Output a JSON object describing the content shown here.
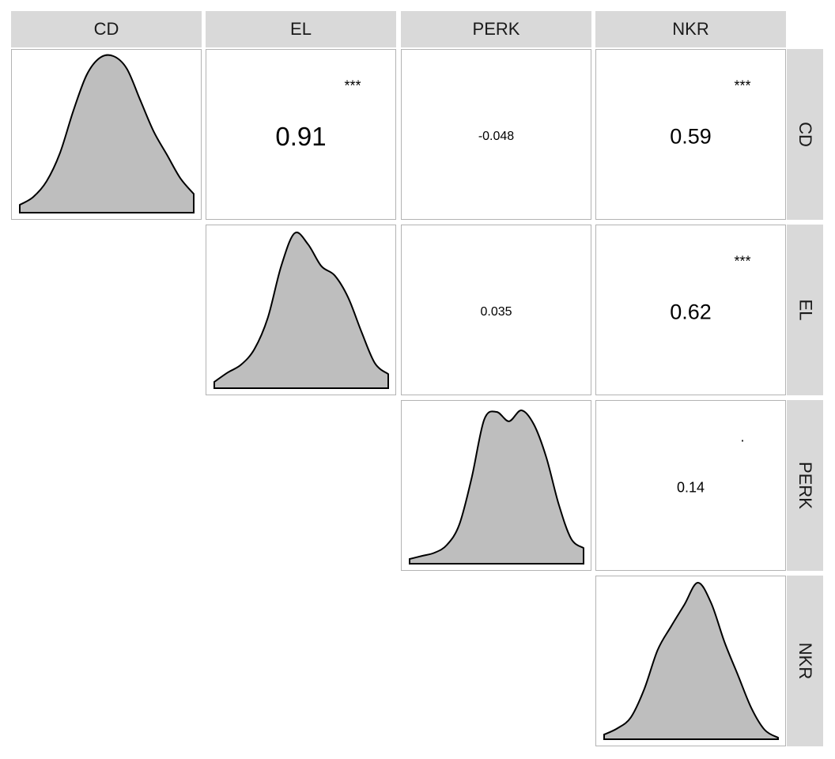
{
  "chart_data": {
    "type": "pairs-correlation-matrix",
    "variables": [
      "CD",
      "EL",
      "PERK",
      "NKR"
    ],
    "diagonal": "density",
    "correlations": [
      {
        "row": "CD",
        "col": "EL",
        "value": "0.91",
        "stars": "***"
      },
      {
        "row": "CD",
        "col": "PERK",
        "value": "-0.048",
        "stars": ""
      },
      {
        "row": "CD",
        "col": "NKR",
        "value": "0.59",
        "stars": "***"
      },
      {
        "row": "EL",
        "col": "PERK",
        "value": "0.035",
        "stars": ""
      },
      {
        "row": "EL",
        "col": "NKR",
        "value": "0.62",
        "stars": "***"
      },
      {
        "row": "PERK",
        "col": "NKR",
        "value": "0.14",
        "stars": "."
      }
    ],
    "densities": {
      "CD": [
        0.05,
        0.1,
        0.2,
        0.38,
        0.65,
        0.88,
        0.99,
        1.0,
        0.92,
        0.72,
        0.52,
        0.37,
        0.22,
        0.12
      ],
      "EL": [
        0.04,
        0.1,
        0.15,
        0.25,
        0.45,
        0.78,
        0.99,
        0.92,
        0.78,
        0.72,
        0.58,
        0.36,
        0.16,
        0.09
      ],
      "PERK": [
        0.03,
        0.05,
        0.07,
        0.12,
        0.25,
        0.55,
        0.92,
        0.97,
        0.91,
        0.98,
        0.89,
        0.68,
        0.38,
        0.16,
        0.1
      ],
      "NKR": [
        0.03,
        0.07,
        0.14,
        0.32,
        0.57,
        0.72,
        0.86,
        1.0,
        0.87,
        0.62,
        0.41,
        0.2,
        0.06,
        0.01
      ]
    },
    "fill_color": "#bebebe",
    "stroke_color": "#000000",
    "strip_color": "#d9d9d9"
  }
}
